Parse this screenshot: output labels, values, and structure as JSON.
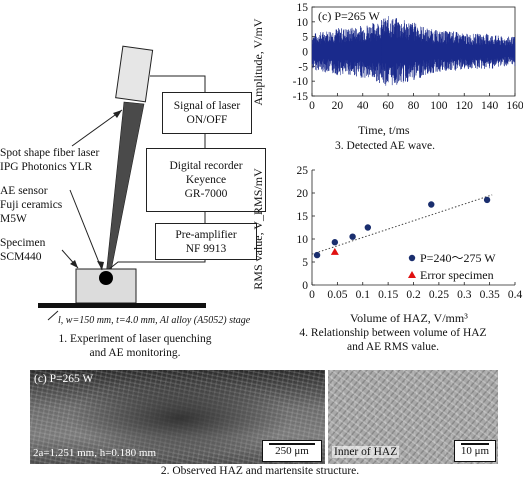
{
  "figure1": {
    "labels": {
      "laser": [
        "Spot shape fiber laser",
        "IPG Photonics YLR"
      ],
      "ae_sensor": [
        "AE sensor",
        "Fuji ceramics",
        "M5W"
      ],
      "specimen": [
        "Specimen",
        "SCM440"
      ],
      "stage": "l, w=150 mm, t=4.0 mm, Al alloy (A5052) stage"
    },
    "boxes": {
      "signal": [
        "Signal of laser",
        "ON/OFF"
      ],
      "recorder": [
        "Digital recorder",
        "Keyence",
        "GR-7000"
      ],
      "preamp": [
        "Pre-amplifier",
        "NF 9913"
      ]
    },
    "caption": [
      "1. Experiment of laser quenching",
      "and AE monitoring."
    ]
  },
  "figure2": {
    "left_title": "(c)  P=265 W",
    "left_params": "2a=1.251 mm, h=0.180 mm",
    "left_scale": "250 μm",
    "right_label": "Inner of HAZ",
    "right_scale": "10 μm",
    "caption": "2. Observed HAZ and martensite structure."
  },
  "figure3": {
    "caption": "3. Detected AE wave.",
    "panel_label": "(c)  P=265 W"
  },
  "figure4": {
    "caption": [
      "4. Relationship between volume of HAZ",
      "and AE RMS value."
    ]
  },
  "chart_data": [
    {
      "type": "line",
      "title": "",
      "panel_label": "(c)  P=265 W",
      "xlabel": "Time, t/ms",
      "ylabel": "Amplitude, V/mV",
      "xlim": [
        0,
        160
      ],
      "ylim": [
        -15,
        15
      ],
      "xticks": [
        0,
        20,
        40,
        60,
        80,
        100,
        120,
        140,
        160
      ],
      "yticks": [
        -15,
        -10,
        -5,
        0,
        5,
        10,
        15
      ],
      "signal_envelope": {
        "x": [
          0,
          10,
          20,
          30,
          40,
          50,
          60,
          70,
          80,
          90,
          100,
          110,
          120,
          130,
          140,
          150,
          160
        ],
        "amplitude": [
          6,
          7,
          8,
          8,
          9,
          10,
          12,
          11,
          10,
          8,
          7,
          7,
          6,
          6,
          6,
          5,
          5
        ]
      },
      "color": "#1a2a8c",
      "grid": false
    },
    {
      "type": "scatter",
      "title": "",
      "xlabel": "Volume of HAZ, V/mm³",
      "ylabel": "RMS value, V_RMS/mV",
      "xlim": [
        0,
        0.4
      ],
      "ylim": [
        0,
        25
      ],
      "xticks": [
        0,
        0.05,
        0.1,
        0.15,
        0.2,
        0.25,
        0.3,
        0.35,
        0.4
      ],
      "xtick_labels": [
        "0",
        "0.05",
        "0.1",
        "0.15",
        "0.2",
        "0.25",
        "0.3",
        "0.35",
        "0.4"
      ],
      "yticks": [
        0,
        5,
        10,
        15,
        20,
        25
      ],
      "series": [
        {
          "name": "P=240～275 W",
          "marker": "circle",
          "color": "#1a2e6e",
          "x": [
            0.01,
            0.045,
            0.08,
            0.11,
            0.235,
            0.345
          ],
          "y": [
            6.5,
            9.3,
            10.5,
            12.5,
            17.5,
            18.5
          ]
        },
        {
          "name": "Error specimen",
          "marker": "triangle",
          "color": "#e01010",
          "x": [
            0.045
          ],
          "y": [
            7.2
          ]
        }
      ],
      "trendline": {
        "style": "dotted",
        "x": [
          0.0,
          0.355
        ],
        "y": [
          6.7,
          19.6
        ]
      },
      "legend": "lower-right",
      "grid": false
    }
  ]
}
